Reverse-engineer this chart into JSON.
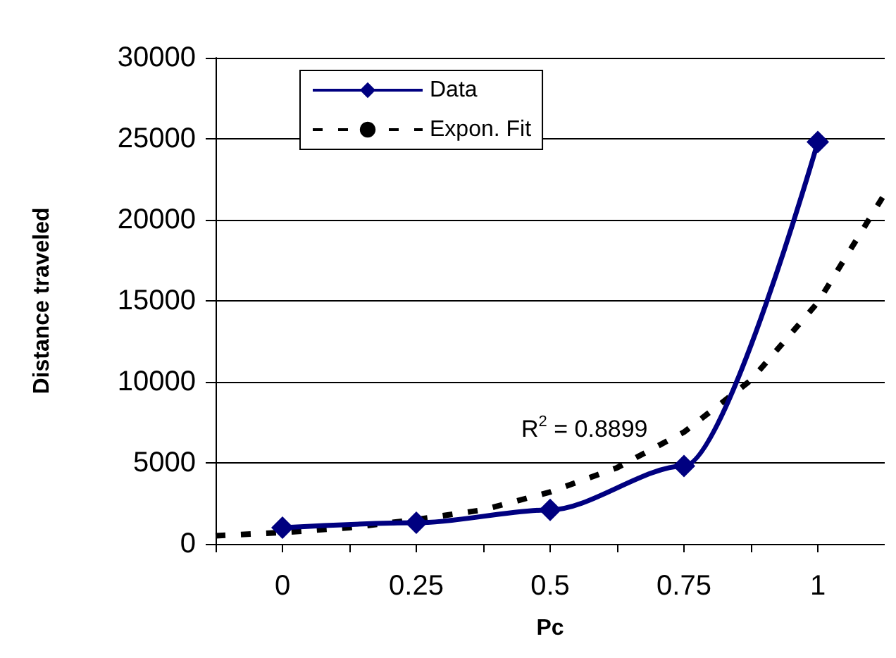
{
  "chart_data": {
    "type": "line",
    "xlabel": "Pc",
    "ylabel": "Distance traveled",
    "xlim": [
      -0.125,
      1.125
    ],
    "xticks": [
      {
        "value": -0.125,
        "label": null
      },
      0,
      {
        "value": 0.125,
        "label": null
      },
      0.25,
      {
        "value": 0.375,
        "label": null
      },
      0.5,
      {
        "value": 0.625,
        "label": null
      },
      0.75,
      {
        "value": 0.875,
        "label": null
      },
      1,
      {
        "value": 1.125,
        "label": null
      }
    ],
    "ylim": [
      0,
      30000
    ],
    "yticks": [
      0,
      5000,
      10000,
      15000,
      20000,
      25000,
      30000
    ],
    "series": [
      {
        "name": "Data",
        "color": "#000080",
        "marker": "diamond",
        "line_style": "solid",
        "x": [
          0,
          0.25,
          0.5,
          0.75,
          1
        ],
        "values": [
          1000,
          1300,
          2100,
          4800,
          24800
        ]
      },
      {
        "name": "Expon. Fit",
        "color": "#000000",
        "marker": "none",
        "line_style": "dashed",
        "x": [
          -0.125,
          0,
          0.125,
          0.25,
          0.375,
          0.5,
          0.625,
          0.75,
          0.875,
          1,
          1.125
        ],
        "values": [
          500,
          700,
          1000,
          1500,
          2100,
          3200,
          4700,
          6900,
          10100,
          14900,
          21600
        ]
      }
    ],
    "annotations": [
      "R$^{2}$ = 0.8899"
    ],
    "grid": "y",
    "legend": "top left"
  }
}
